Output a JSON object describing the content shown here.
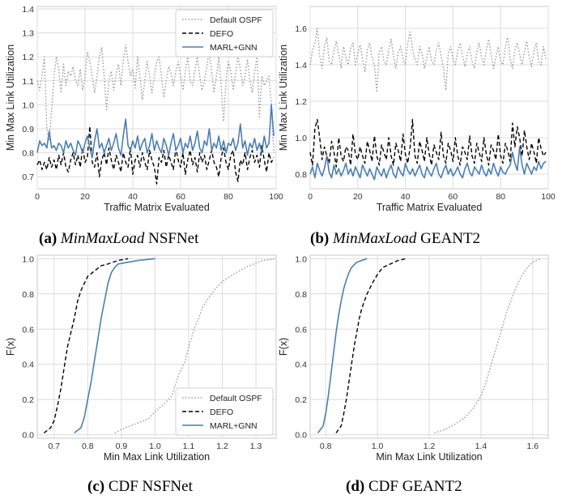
{
  "captions": [
    {
      "label": "(a)",
      "italic": "MinMaxLoad",
      "rest": " NSFNet"
    },
    {
      "label": "(b)",
      "italic": "MinMaxLoad",
      "rest": " GEANT2"
    },
    {
      "label": "(c)",
      "italic": "",
      "rest": " CDF NSFNet"
    },
    {
      "label": "(d)",
      "italic": "",
      "rest": " CDF GEANT2"
    }
  ],
  "colors": {
    "ospf": "#9e9e9e",
    "defo": "#000000",
    "marl": "#4a7fb0",
    "grid": "#dcdcdc",
    "frame": "#c8c8c8"
  },
  "chart_data": [
    {
      "id": "a",
      "type": "line",
      "xlabel": "Traffic Matrix Evaluated",
      "ylabel": "Min Max Link Utilization",
      "xlim": [
        0,
        100
      ],
      "ylim": [
        0.65,
        1.41
      ],
      "xticks": [
        0,
        20,
        40,
        60,
        80,
        100
      ],
      "yticks": [
        0.7,
        0.8,
        0.9,
        1.0,
        1.1,
        1.2,
        1.3,
        1.4
      ],
      "tick_decimals": 1,
      "grid": true,
      "legend": "top-right",
      "series": [
        {
          "name": "Default OSPF",
          "style": "dotted",
          "values": [
            1.1,
            1.06,
            1.12,
            1.2,
            0.9,
            0.85,
            0.98,
            1.12,
            1.2,
            1.15,
            1.05,
            1.17,
            1.08,
            1.14,
            1.12,
            1.16,
            1.1,
            1.08,
            1.15,
            1.06,
            1.12,
            1.22,
            1.18,
            1.12,
            1.05,
            1.12,
            1.2,
            1.24,
            1.12,
            0.98,
            1.1,
            1.14,
            1.06,
            1.13,
            1.17,
            1.08,
            1.18,
            1.25,
            1.18,
            1.12,
            1.15,
            1.07,
            1.2,
            1.12,
            1.02,
            1.1,
            1.18,
            1.12,
            1.05,
            1.12,
            1.18,
            1.2,
            1.12,
            1.03,
            1.1,
            1.16,
            1.13,
            1.08,
            1.14,
            1.18,
            1.12,
            1.06,
            1.14,
            1.2,
            1.1,
            1.08,
            1.14,
            1.2,
            1.12,
            1.06,
            1.1,
            1.16,
            1.22,
            1.14,
            1.05,
            1.12,
            1.2,
            1.08,
            0.93,
            1.1,
            1.18,
            1.14,
            1.06,
            1.13,
            1.2,
            1.15,
            1.08,
            1.12,
            1.19,
            1.1,
            1.05,
            1.14,
            1.2,
            0.95,
            1.12,
            1.08,
            1.1,
            1.12,
            1.0,
            0.8
          ]
        },
        {
          "name": "DEFO",
          "style": "dashed",
          "values": [
            0.75,
            0.77,
            0.73,
            0.76,
            0.73,
            0.78,
            0.74,
            0.77,
            0.73,
            0.79,
            0.75,
            0.8,
            0.74,
            0.72,
            0.77,
            0.8,
            0.75,
            0.79,
            0.74,
            0.82,
            0.76,
            0.78,
            0.91,
            0.76,
            0.74,
            0.8,
            0.7,
            0.77,
            0.8,
            0.75,
            0.82,
            0.77,
            0.73,
            0.79,
            0.76,
            0.72,
            0.8,
            0.76,
            0.74,
            0.82,
            0.71,
            0.77,
            0.79,
            0.74,
            0.8,
            0.76,
            0.73,
            0.81,
            0.77,
            0.74,
            0.67,
            0.78,
            0.76,
            0.81,
            0.74,
            0.79,
            0.76,
            0.73,
            0.82,
            0.77,
            0.74,
            0.8,
            0.71,
            0.77,
            0.81,
            0.75,
            0.78,
            0.72,
            0.8,
            0.76,
            0.79,
            0.73,
            0.77,
            0.81,
            0.76,
            0.74,
            0.7,
            0.78,
            0.82,
            0.76,
            0.73,
            0.79,
            0.81,
            0.72,
            0.68,
            0.77,
            0.75,
            0.8,
            0.73,
            0.78,
            0.81,
            0.76,
            0.79,
            0.74,
            0.83,
            0.77,
            0.72,
            0.8,
            0.76,
            0.78
          ]
        },
        {
          "name": "MARL+GNN",
          "style": "solid",
          "values": [
            0.8,
            0.85,
            0.83,
            0.84,
            0.82,
            0.89,
            0.82,
            0.83,
            0.81,
            0.84,
            0.83,
            0.8,
            0.85,
            0.82,
            0.84,
            0.81,
            0.79,
            0.85,
            0.83,
            0.8,
            0.84,
            0.87,
            0.82,
            0.78,
            0.85,
            0.9,
            0.82,
            0.84,
            0.8,
            0.83,
            0.86,
            0.81,
            0.84,
            0.88,
            0.82,
            0.79,
            0.87,
            0.94,
            0.83,
            0.81,
            0.85,
            0.82,
            0.87,
            0.81,
            0.84,
            0.86,
            0.8,
            0.83,
            0.88,
            0.81,
            0.85,
            0.82,
            0.8,
            0.86,
            0.83,
            0.79,
            0.84,
            0.88,
            0.81,
            0.83,
            0.86,
            0.8,
            0.84,
            0.82,
            0.87,
            0.81,
            0.84,
            0.89,
            0.82,
            0.8,
            0.85,
            0.83,
            0.9,
            0.81,
            0.84,
            0.82,
            0.87,
            0.81,
            0.85,
            0.8,
            0.84,
            0.83,
            0.86,
            0.81,
            0.84,
            0.92,
            0.82,
            0.85,
            0.79,
            0.84,
            0.82,
            0.86,
            0.81,
            0.84,
            0.8,
            0.87,
            0.82,
            0.84,
            1.0,
            0.87
          ]
        }
      ]
    },
    {
      "id": "b",
      "type": "line",
      "xlabel": "Traffic Matrix Evaluated",
      "ylabel": "Min Max Link Utilization",
      "xlim": [
        0,
        100
      ],
      "ylim": [
        0.72,
        1.72
      ],
      "xticks": [
        0,
        20,
        40,
        60,
        80,
        100
      ],
      "yticks": [
        0.8,
        1.0,
        1.2,
        1.4,
        1.6
      ],
      "tick_decimals": 1,
      "grid": true,
      "legend": "none",
      "series": [
        {
          "name": "Default OSPF",
          "style": "dotted",
          "values": [
            1.4,
            1.48,
            1.52,
            1.6,
            1.45,
            1.38,
            1.5,
            1.55,
            1.42,
            1.4,
            1.48,
            1.53,
            1.46,
            1.38,
            1.5,
            1.44,
            1.4,
            1.49,
            1.52,
            1.4,
            1.46,
            1.51,
            1.43,
            1.36,
            1.48,
            1.52,
            1.44,
            1.4,
            1.25,
            1.47,
            1.5,
            1.42,
            1.4,
            1.48,
            1.54,
            1.45,
            1.38,
            1.47,
            1.5,
            1.43,
            1.4,
            1.52,
            1.58,
            1.48,
            1.43,
            1.4,
            1.5,
            1.46,
            1.38,
            1.44,
            1.5,
            1.42,
            1.4,
            1.48,
            1.52,
            1.45,
            1.38,
            1.26,
            1.46,
            1.5,
            1.43,
            1.4,
            1.48,
            1.52,
            1.45,
            1.39,
            1.46,
            1.5,
            1.42,
            1.38,
            1.47,
            1.52,
            1.44,
            1.4,
            1.48,
            1.54,
            1.46,
            1.38,
            1.44,
            1.5,
            1.42,
            1.4,
            1.5,
            1.55,
            1.43,
            1.38,
            1.48,
            1.52,
            1.46,
            1.4,
            1.47,
            1.53,
            1.44,
            1.39,
            1.48,
            1.52,
            1.42,
            1.4,
            1.5,
            1.43
          ]
        },
        {
          "name": "DEFO",
          "style": "dashed",
          "values": [
            0.92,
            0.85,
            1.05,
            1.1,
            1.0,
            0.88,
            0.95,
            0.9,
            0.86,
            0.98,
            0.92,
            0.84,
            1.0,
            0.9,
            0.87,
            0.95,
            0.93,
            0.85,
            1.02,
            0.91,
            0.88,
            0.95,
            0.9,
            0.86,
            0.98,
            0.93,
            0.87,
            1.01,
            0.9,
            0.85,
            0.96,
            0.92,
            0.88,
            1.0,
            0.9,
            0.85,
            0.97,
            0.93,
            0.87,
            1.02,
            0.91,
            0.86,
            0.95,
            1.1,
            0.9,
            0.86,
            0.98,
            0.93,
            0.87,
            1.0,
            0.91,
            0.85,
            0.96,
            0.92,
            0.88,
            1.03,
            0.9,
            0.86,
            0.97,
            0.93,
            0.87,
            1.0,
            0.9,
            0.85,
            0.95,
            0.92,
            0.88,
            1.01,
            0.9,
            0.86,
            0.97,
            0.92,
            0.87,
            1.0,
            0.91,
            0.85,
            0.96,
            0.93,
            0.88,
            1.02,
            0.9,
            0.86,
            0.97,
            0.93,
            0.87,
            1.08,
            0.95,
            1.06,
            1.0,
            0.9,
            1.04,
            0.95,
            0.88,
            0.97,
            0.92,
            0.86,
            1.0,
            0.94,
            0.9,
            0.92
          ]
        },
        {
          "name": "MARL+GNN",
          "style": "solid",
          "values": [
            0.8,
            0.84,
            0.78,
            0.86,
            0.82,
            0.79,
            0.83,
            0.9,
            0.81,
            0.78,
            0.85,
            0.8,
            0.83,
            0.79,
            0.82,
            0.86,
            0.8,
            0.83,
            0.79,
            0.84,
            0.81,
            0.78,
            0.85,
            0.82,
            0.79,
            0.83,
            0.8,
            0.77,
            0.84,
            0.81,
            0.79,
            0.83,
            0.78,
            0.82,
            0.85,
            0.8,
            0.78,
            0.84,
            0.81,
            0.79,
            0.86,
            0.82,
            0.8,
            0.83,
            0.79,
            0.82,
            0.85,
            0.8,
            0.78,
            0.84,
            0.81,
            0.79,
            0.83,
            0.86,
            0.8,
            0.78,
            0.82,
            0.85,
            0.8,
            0.83,
            0.79,
            0.81,
            0.84,
            0.8,
            0.78,
            0.83,
            0.86,
            0.81,
            0.79,
            0.84,
            0.82,
            0.8,
            0.85,
            0.81,
            0.79,
            0.83,
            0.8,
            0.86,
            0.82,
            0.79,
            0.84,
            0.81,
            0.8,
            0.83,
            0.85,
            0.92,
            0.86,
            0.82,
            0.95,
            0.85,
            0.8,
            0.86,
            0.83,
            0.8,
            0.84,
            0.82,
            0.87,
            0.83,
            0.86,
            0.87
          ]
        }
      ]
    },
    {
      "id": "c",
      "type": "line",
      "xlabel": "Min Max Link Utilization",
      "ylabel": "F(x)",
      "xlim": [
        0.65,
        1.36
      ],
      "ylim": [
        -0.02,
        1.02
      ],
      "xticks": [
        0.7,
        0.8,
        0.9,
        1.0,
        1.1,
        1.2,
        1.3
      ],
      "yticks": [
        0.0,
        0.2,
        0.4,
        0.6,
        0.8,
        1.0
      ],
      "tick_decimals": 1,
      "grid": true,
      "legend": "bottom-right",
      "series": [
        {
          "name": "Default OSPF",
          "style": "dotted",
          "x": [
            0.88,
            0.9,
            0.94,
            0.98,
            1.0,
            1.03,
            1.05,
            1.06,
            1.07,
            1.08,
            1.09,
            1.1,
            1.11,
            1.12,
            1.13,
            1.14,
            1.16,
            1.18,
            1.2,
            1.24,
            1.28,
            1.32,
            1.36
          ],
          "y": [
            0.01,
            0.03,
            0.06,
            0.09,
            0.13,
            0.18,
            0.22,
            0.28,
            0.34,
            0.38,
            0.42,
            0.5,
            0.56,
            0.62,
            0.66,
            0.72,
            0.78,
            0.83,
            0.87,
            0.92,
            0.96,
            0.99,
            1.0
          ]
        },
        {
          "name": "DEFO",
          "style": "dashed",
          "x": [
            0.67,
            0.69,
            0.7,
            0.71,
            0.72,
            0.73,
            0.74,
            0.75,
            0.76,
            0.77,
            0.78,
            0.79,
            0.8,
            0.82,
            0.84,
            0.86,
            0.89,
            0.92
          ],
          "y": [
            0.01,
            0.04,
            0.08,
            0.16,
            0.26,
            0.38,
            0.5,
            0.58,
            0.66,
            0.76,
            0.82,
            0.86,
            0.9,
            0.93,
            0.96,
            0.97,
            0.99,
            1.0
          ]
        },
        {
          "name": "MARL+GNN",
          "style": "solid",
          "x": [
            0.76,
            0.78,
            0.79,
            0.8,
            0.81,
            0.82,
            0.83,
            0.84,
            0.85,
            0.86,
            0.87,
            0.88,
            0.89,
            0.92,
            0.95,
            1.0
          ],
          "y": [
            0.01,
            0.04,
            0.1,
            0.2,
            0.3,
            0.42,
            0.54,
            0.66,
            0.76,
            0.86,
            0.92,
            0.95,
            0.97,
            0.98,
            0.99,
            1.0
          ]
        }
      ]
    },
    {
      "id": "d",
      "type": "line",
      "xlabel": "Min Max Link Utilization",
      "ylabel": "F(x)",
      "xlim": [
        0.74,
        1.66
      ],
      "ylim": [
        -0.02,
        1.02
      ],
      "xticks": [
        0.8,
        1.0,
        1.2,
        1.4,
        1.6
      ],
      "yticks": [
        0.0,
        0.2,
        0.4,
        0.6,
        0.8,
        1.0
      ],
      "tick_decimals": 1,
      "grid": true,
      "legend": "none",
      "series": [
        {
          "name": "Default OSPF",
          "style": "dotted",
          "x": [
            1.22,
            1.26,
            1.3,
            1.34,
            1.37,
            1.4,
            1.42,
            1.44,
            1.46,
            1.48,
            1.5,
            1.52,
            1.54,
            1.56,
            1.58,
            1.6,
            1.63
          ],
          "y": [
            0.01,
            0.03,
            0.06,
            0.1,
            0.15,
            0.22,
            0.3,
            0.4,
            0.5,
            0.6,
            0.7,
            0.78,
            0.85,
            0.91,
            0.95,
            0.98,
            1.0
          ]
        },
        {
          "name": "DEFO",
          "style": "dashed",
          "x": [
            0.84,
            0.86,
            0.87,
            0.88,
            0.89,
            0.9,
            0.91,
            0.92,
            0.93,
            0.94,
            0.96,
            0.98,
            1.0,
            1.02,
            1.05,
            1.08,
            1.11
          ],
          "y": [
            0.01,
            0.05,
            0.12,
            0.2,
            0.3,
            0.4,
            0.5,
            0.58,
            0.66,
            0.72,
            0.8,
            0.86,
            0.91,
            0.95,
            0.97,
            0.99,
            1.0
          ]
        },
        {
          "name": "MARL+GNN",
          "style": "solid",
          "x": [
            0.77,
            0.79,
            0.8,
            0.81,
            0.82,
            0.83,
            0.84,
            0.85,
            0.86,
            0.87,
            0.88,
            0.89,
            0.9,
            0.92,
            0.94,
            0.96
          ],
          "y": [
            0.01,
            0.05,
            0.12,
            0.22,
            0.34,
            0.46,
            0.58,
            0.68,
            0.76,
            0.83,
            0.88,
            0.92,
            0.95,
            0.98,
            0.99,
            1.0
          ]
        }
      ]
    }
  ]
}
